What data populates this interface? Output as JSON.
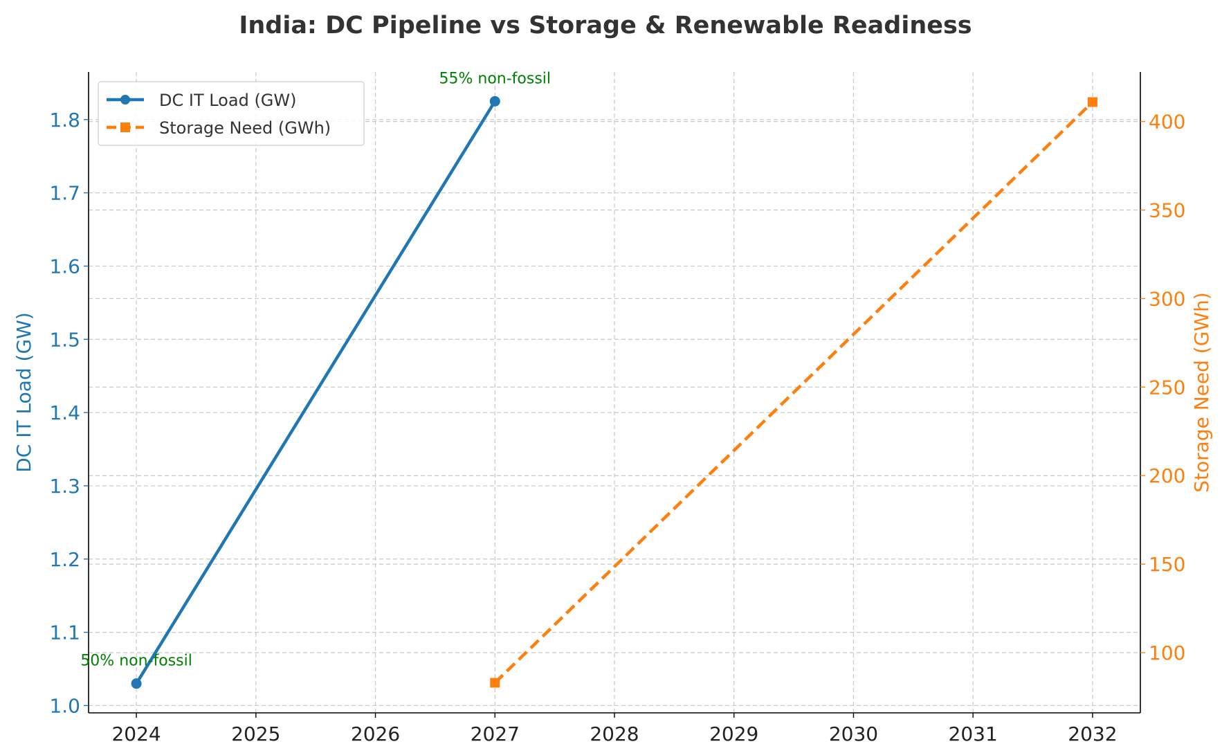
{
  "chart_data": {
    "type": "line",
    "title": "India: DC Pipeline vs Storage & Renewable Readiness",
    "x": [
      2024,
      2025,
      2026,
      2027,
      2028,
      2029,
      2030,
      2031,
      2032
    ],
    "x_ticks": [
      "2024",
      "2025",
      "2026",
      "2027",
      "2028",
      "2029",
      "2030",
      "2031",
      "2032"
    ],
    "xlim": [
      2023.6,
      2032.4
    ],
    "y_left": {
      "label": "DC IT Load (GW)",
      "ylim": [
        0.99,
        1.865
      ],
      "ticks": [
        1.0,
        1.1,
        1.2,
        1.3,
        1.4,
        1.5,
        1.6,
        1.7,
        1.8
      ],
      "tick_labels": [
        "1.0",
        "1.1",
        "1.2",
        "1.3",
        "1.4",
        "1.5",
        "1.6",
        "1.7",
        "1.8"
      ],
      "color": "#1f77b4"
    },
    "y_right": {
      "label": "Storage Need (GWh)",
      "ylim": [
        66,
        428
      ],
      "ticks": [
        100,
        150,
        200,
        250,
        300,
        350,
        400
      ],
      "tick_labels": [
        "100",
        "150",
        "200",
        "250",
        "300",
        "350",
        "400"
      ],
      "color": "#ff7f0e"
    },
    "series": [
      {
        "name": "DC IT Load (GW)",
        "axis": "left",
        "color": "#1f77b4",
        "line_style": "solid",
        "marker": "circle",
        "points": [
          [
            2024,
            1.03
          ],
          [
            2027,
            1.825
          ]
        ]
      },
      {
        "name": "Storage Need (GWh)",
        "axis": "right",
        "color": "#ff7f0e",
        "line_style": "dashed",
        "marker": "square",
        "points": [
          [
            2027,
            83
          ],
          [
            2032,
            411
          ]
        ]
      }
    ],
    "annotations": [
      {
        "text": "50% non-fossil",
        "x": 2024,
        "y": 1.03,
        "axis": "left",
        "color": "#008000"
      },
      {
        "text": "55% non-fossil",
        "x": 2027,
        "y": 1.825,
        "axis": "left",
        "color": "#008000"
      }
    ],
    "legend": {
      "placement": "top-left",
      "entries": [
        "DC IT Load (GW)",
        "Storage Need (GWh)"
      ]
    },
    "grid": true
  }
}
